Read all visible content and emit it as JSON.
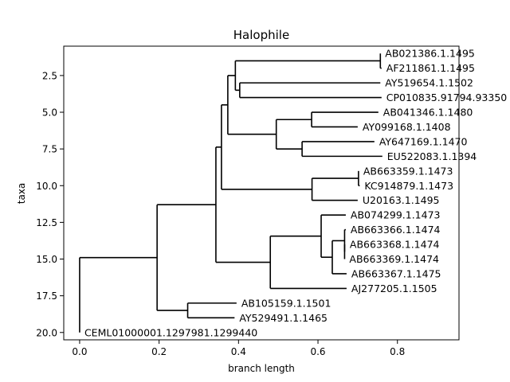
{
  "chart_data": {
    "type": "tree",
    "title": "Halophile",
    "xlabel": "branch length",
    "ylabel": "taxa",
    "xlim": [
      -0.04,
      0.955
    ],
    "ylim": [
      20.5,
      0.5
    ],
    "xticks": [
      {
        "value": 0.0,
        "label": "0.0"
      },
      {
        "value": 0.2,
        "label": "0.2"
      },
      {
        "value": 0.4,
        "label": "0.4"
      },
      {
        "value": 0.6,
        "label": "0.6"
      },
      {
        "value": 0.8,
        "label": "0.8"
      }
    ],
    "yticks": [
      {
        "value": 2.5,
        "label": "2.5"
      },
      {
        "value": 5.0,
        "label": "5.0"
      },
      {
        "value": 7.5,
        "label": "7.5"
      },
      {
        "value": 10.0,
        "label": "10.0"
      },
      {
        "value": 12.5,
        "label": "12.5"
      },
      {
        "value": 15.0,
        "label": "15.0"
      },
      {
        "value": 17.5,
        "label": "17.5"
      },
      {
        "value": 20.0,
        "label": "20.0"
      }
    ],
    "leaves": [
      {
        "label": "AB021386.1.1495",
        "x": 0.757,
        "y": 1
      },
      {
        "label": "AF211861.1.1495",
        "x": 0.76,
        "y": 2
      },
      {
        "label": "AY519654.1.1502",
        "x": 0.757,
        "y": 3
      },
      {
        "label": "CP010835.91794.93350",
        "x": 0.76,
        "y": 4
      },
      {
        "label": "AB041346.1.1480",
        "x": 0.752,
        "y": 5
      },
      {
        "label": "AY099168.1.1408",
        "x": 0.7,
        "y": 6
      },
      {
        "label": "AY647169.1.1470",
        "x": 0.742,
        "y": 7
      },
      {
        "label": "EU522083.1.1394",
        "x": 0.762,
        "y": 8
      },
      {
        "label": "AB663359.1.1473",
        "x": 0.702,
        "y": 9
      },
      {
        "label": "KC914879.1.1473",
        "x": 0.705,
        "y": 10
      },
      {
        "label": "U20163.1.1495",
        "x": 0.7,
        "y": 11
      },
      {
        "label": "AB074299.1.1473",
        "x": 0.67,
        "y": 12
      },
      {
        "label": "AB663366.1.1474",
        "x": 0.67,
        "y": 13
      },
      {
        "label": "AB663368.1.1474",
        "x": 0.668,
        "y": 14
      },
      {
        "label": "AB663369.1.1474",
        "x": 0.667,
        "y": 15
      },
      {
        "label": "AB663367.1.1475",
        "x": 0.672,
        "y": 16
      },
      {
        "label": "AJ277205.1.1505",
        "x": 0.672,
        "y": 17
      },
      {
        "label": "AB105159.1.1501",
        "x": 0.395,
        "y": 18
      },
      {
        "label": "AY529491.1.1465",
        "x": 0.39,
        "y": 19
      },
      {
        "label": "CEML01000001.1297981.1299440",
        "x": 0.0,
        "y": 20
      }
    ],
    "internal_nodes": [
      {
        "id": "n1",
        "x": 0.757,
        "y": 1.5,
        "children": [
          "L0",
          "L1"
        ]
      },
      {
        "id": "n2",
        "x": 0.403,
        "y": 3.5,
        "children": [
          "L2",
          "L3"
        ]
      },
      {
        "id": "n3",
        "x": 0.392,
        "y": 2.5,
        "children": [
          "n1",
          "n2"
        ]
      },
      {
        "id": "n4",
        "x": 0.584,
        "y": 5.5,
        "children": [
          "L4",
          "L5"
        ]
      },
      {
        "id": "n5",
        "x": 0.56,
        "y": 7.5,
        "children": [
          "L6",
          "L7"
        ]
      },
      {
        "id": "n6",
        "x": 0.495,
        "y": 6.5,
        "children": [
          "n4",
          "n5"
        ]
      },
      {
        "id": "n7",
        "x": 0.373,
        "y": 4.5,
        "children": [
          "n3",
          "n6"
        ]
      },
      {
        "id": "n8",
        "x": 0.702,
        "y": 9.5,
        "children": [
          "L8",
          "L9"
        ]
      },
      {
        "id": "n9",
        "x": 0.585,
        "y": 10.25,
        "children": [
          "n8",
          "L10"
        ]
      },
      {
        "id": "n10",
        "x": 0.357,
        "y": 7.375,
        "children": [
          "n7",
          "n9"
        ]
      },
      {
        "id": "n11",
        "x": 0.667,
        "y": 14.5,
        "children": [
          "L13",
          "L14"
        ]
      },
      {
        "id": "n12",
        "x": 0.667,
        "y": 13.75,
        "children": [
          "L12",
          "n11"
        ]
      },
      {
        "id": "n13",
        "x": 0.636,
        "y": 14.875,
        "children": [
          "n12",
          "L15"
        ]
      },
      {
        "id": "n14",
        "x": 0.608,
        "y": 13.4375,
        "children": [
          "L11",
          "n13"
        ]
      },
      {
        "id": "n15",
        "x": 0.48,
        "y": 15.21875,
        "children": [
          "n14",
          "L16"
        ]
      },
      {
        "id": "n16",
        "x": 0.343,
        "y": 11.296875,
        "children": [
          "n10",
          "n15"
        ]
      },
      {
        "id": "n17",
        "x": 0.272,
        "y": 18.5,
        "children": [
          "L17",
          "L18"
        ]
      },
      {
        "id": "n18",
        "x": 0.195,
        "y": 14.8984375,
        "children": [
          "n16",
          "n17"
        ]
      },
      {
        "id": "n19",
        "x": 0.0,
        "y": 17.44921875,
        "children": [
          "n18",
          "L19"
        ]
      }
    ]
  }
}
